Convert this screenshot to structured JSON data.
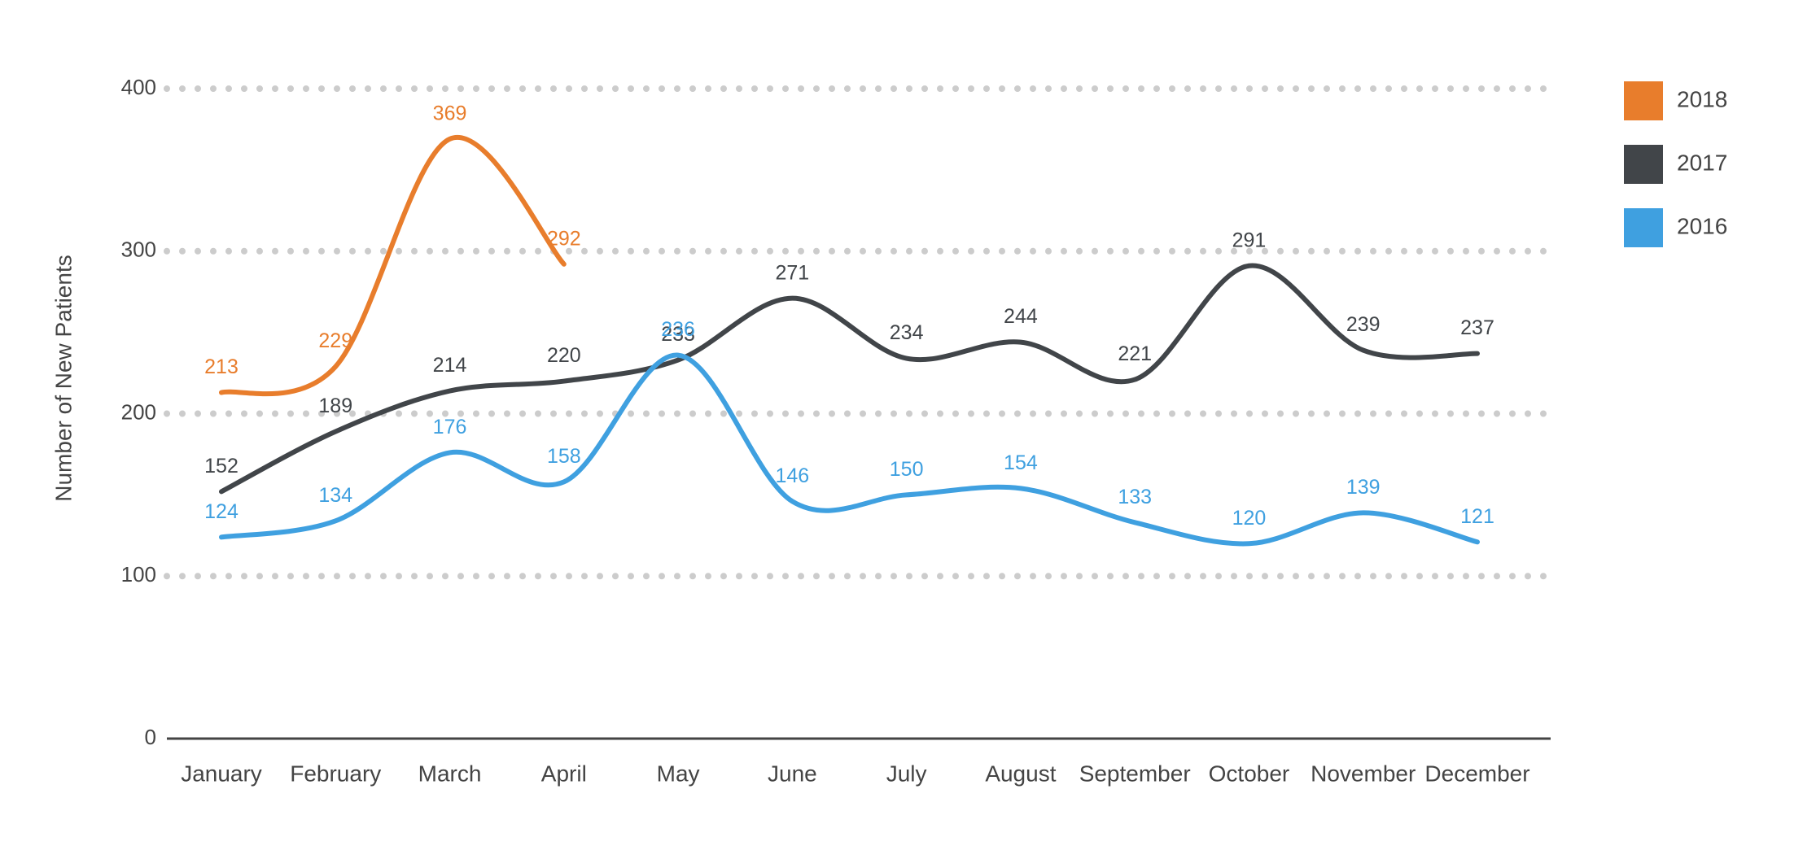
{
  "chart_data": {
    "type": "line",
    "y_label": "Number of New Patients",
    "categories": [
      "January",
      "February",
      "March",
      "April",
      "May",
      "June",
      "July",
      "August",
      "September",
      "October",
      "November",
      "December"
    ],
    "series": [
      {
        "name": "2018",
        "color": "#e87d2c",
        "values": [
          213,
          229,
          369,
          292,
          null,
          null,
          null,
          null,
          null,
          null,
          null,
          null
        ]
      },
      {
        "name": "2017",
        "color": "#414549",
        "values": [
          152,
          189,
          214,
          220,
          233,
          271,
          234,
          244,
          221,
          291,
          239,
          237
        ]
      },
      {
        "name": "2016",
        "color": "#3fa0e0",
        "values": [
          124,
          134,
          176,
          158,
          236,
          146,
          150,
          154,
          133,
          120,
          139,
          121
        ]
      }
    ],
    "ylim": [
      0,
      400
    ],
    "yticks": [
      0,
      100,
      200,
      300,
      400
    ],
    "grid": true,
    "legend": "right"
  }
}
